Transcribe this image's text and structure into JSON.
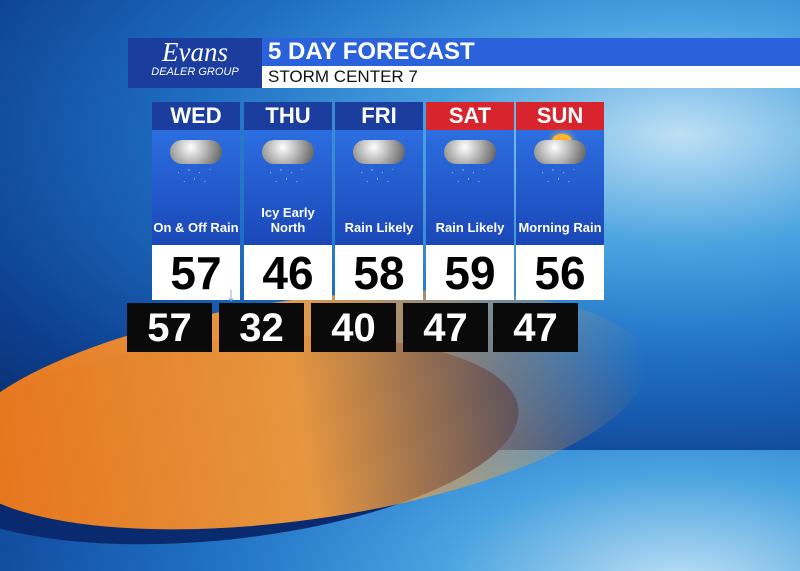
{
  "logo": {
    "name": "Evans",
    "tagline": "DEALER GROUP"
  },
  "header": {
    "title": "5 DAY FORECAST",
    "subtitle": "STORM CENTER 7"
  },
  "colors": {
    "weekday": "#1a3d9e",
    "weekend": "#d8242c"
  },
  "days": [
    {
      "day": "WED",
      "icon": "cloud-rain-icon",
      "condition": "On & Off Rain",
      "high": "57",
      "low": "57",
      "trend": "falling"
    },
    {
      "day": "THU",
      "icon": "cloud-ice-icon",
      "condition": "Icy Early North",
      "high": "46",
      "low": "32"
    },
    {
      "day": "FRI",
      "icon": "cloud-rain-icon",
      "condition": "Rain Likely",
      "high": "58",
      "low": "40"
    },
    {
      "day": "SAT",
      "icon": "cloud-rain-icon",
      "condition": "Rain Likely",
      "high": "59",
      "low": "47"
    },
    {
      "day": "SUN",
      "icon": "sun-cloud-rain-icon",
      "condition": "Morning Rain",
      "high": "56",
      "low": "47"
    }
  ]
}
